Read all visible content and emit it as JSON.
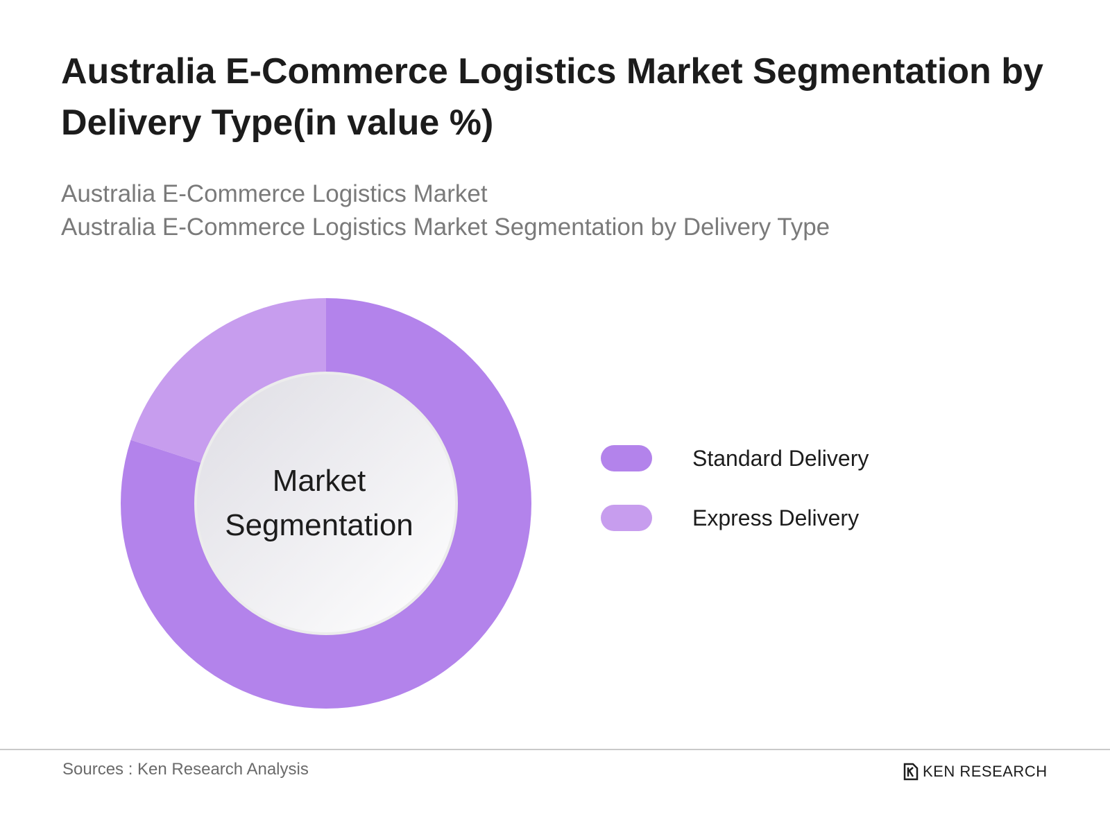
{
  "header": {
    "title": "Australia E-Commerce Logistics Market Segmentation by Delivery Type(in value %)",
    "subtitle_1": "Australia E-Commerce Logistics Market",
    "subtitle_2": "Australia E-Commerce Logistics Market Segmentation by Delivery Type"
  },
  "chart_data": {
    "type": "pie",
    "style": "donut",
    "center_label_line1": "Market",
    "center_label_line2": "Segmentation",
    "legend_placement": "right",
    "series": [
      {
        "name": "Standard Delivery",
        "value": 80,
        "color": "#b383eb"
      },
      {
        "name": "Express Delivery",
        "value": 20,
        "color": "#c79dee"
      }
    ]
  },
  "footer": {
    "sources": "Sources : Ken Research Analysis",
    "logo_text": "KEN RESEARCH"
  },
  "colors": {
    "title": "#1c1c1c",
    "subtitle": "#7a7a7a",
    "divider": "#c9c9c9"
  }
}
